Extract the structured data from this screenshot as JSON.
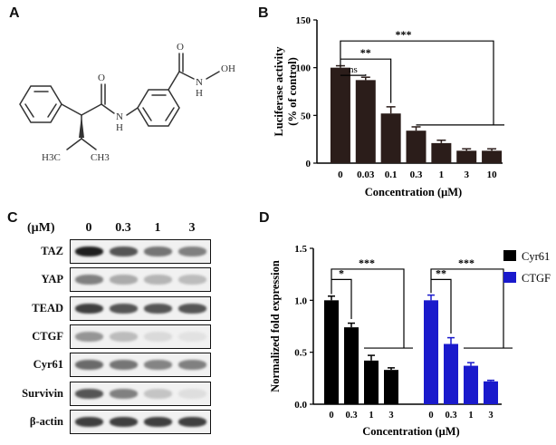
{
  "panels": {
    "a": {
      "letter": "A"
    },
    "b": {
      "letter": "B"
    },
    "c": {
      "letter": "C"
    },
    "d": {
      "letter": "D"
    }
  },
  "structure": {
    "atoms": {
      "carbonyl_O_left": "O",
      "NH_amide": "N",
      "H_amide": "H",
      "carbonyl_O_right": "O",
      "N_hydroxamic": "N",
      "H_hydroxamic": "H",
      "OH": "OH",
      "ch3_left": "H3C",
      "ch3_right": "CH3"
    }
  },
  "western_blot": {
    "unit_label": "(μM)",
    "concentrations": [
      "0",
      "0.3",
      "1",
      "3"
    ],
    "rows": [
      {
        "label": "TAZ",
        "intensities": [
          0.95,
          0.7,
          0.55,
          0.5
        ]
      },
      {
        "label": "YAP",
        "intensities": [
          0.5,
          0.3,
          0.25,
          0.22
        ]
      },
      {
        "label": "TEAD",
        "intensities": [
          0.8,
          0.7,
          0.7,
          0.7
        ]
      },
      {
        "label": "CTGF",
        "intensities": [
          0.4,
          0.22,
          0.08,
          0.04
        ]
      },
      {
        "label": "Cyr61",
        "intensities": [
          0.6,
          0.55,
          0.48,
          0.5
        ]
      },
      {
        "label": "Survivin",
        "intensities": [
          0.7,
          0.5,
          0.18,
          0.06
        ]
      },
      {
        "label": "β-actin",
        "intensities": [
          0.8,
          0.8,
          0.8,
          0.8
        ]
      }
    ]
  },
  "chart_data": [
    {
      "type": "bar",
      "panel": "B",
      "categories": [
        "0",
        "0.03",
        "0.1",
        "0.3",
        "1",
        "3",
        "10"
      ],
      "values": [
        100,
        87,
        52,
        34,
        21,
        13,
        13
      ],
      "errors": [
        2,
        3,
        7,
        4,
        3,
        2,
        2
      ],
      "xlabel": "Concentration (μM)",
      "ylabel_line1": "Luciferase activity",
      "ylabel_line2": "(% of control)",
      "ylim": [
        0,
        150
      ],
      "yticks": [
        "0",
        "50",
        "100",
        "150"
      ],
      "color": "#2b1d1a",
      "annotations": [
        {
          "label": "ns",
          "from": 0,
          "to": 1
        },
        {
          "label": "**",
          "from": 0,
          "to": 2
        },
        {
          "label": "***",
          "from": 0,
          "to": 6
        }
      ]
    },
    {
      "type": "bar",
      "panel": "D",
      "groups": [
        {
          "name": "Cyr61",
          "color": "#000000",
          "categories": [
            "0",
            "0.3",
            "1",
            "3"
          ],
          "values": [
            1.0,
            0.74,
            0.42,
            0.33
          ],
          "errors": [
            0.04,
            0.04,
            0.05,
            0.02
          ]
        },
        {
          "name": "CTGF",
          "color": "#1a1acc",
          "categories": [
            "0",
            "0.3",
            "1",
            "3"
          ],
          "values": [
            1.0,
            0.58,
            0.37,
            0.22
          ],
          "errors": [
            0.05,
            0.06,
            0.03,
            0.01
          ]
        }
      ],
      "xlabel": "Concentration (μM)",
      "ylabel": "Normalized fold expression",
      "ylim": [
        0,
        1.5
      ],
      "yticks": [
        "0.0",
        "0.5",
        "1.0",
        "1.5"
      ],
      "annotations": [
        {
          "group": 0,
          "label": "*",
          "from": 0,
          "to": 1
        },
        {
          "group": 0,
          "label": "***",
          "from": 0,
          "to": 3
        },
        {
          "group": 1,
          "label": "**",
          "from": 0,
          "to": 1
        },
        {
          "group": 1,
          "label": "***",
          "from": 0,
          "to": 3
        }
      ],
      "legend": [
        {
          "name": "Cyr61",
          "color": "#000000"
        },
        {
          "name": "CTGF",
          "color": "#1a1acc"
        }
      ]
    }
  ]
}
